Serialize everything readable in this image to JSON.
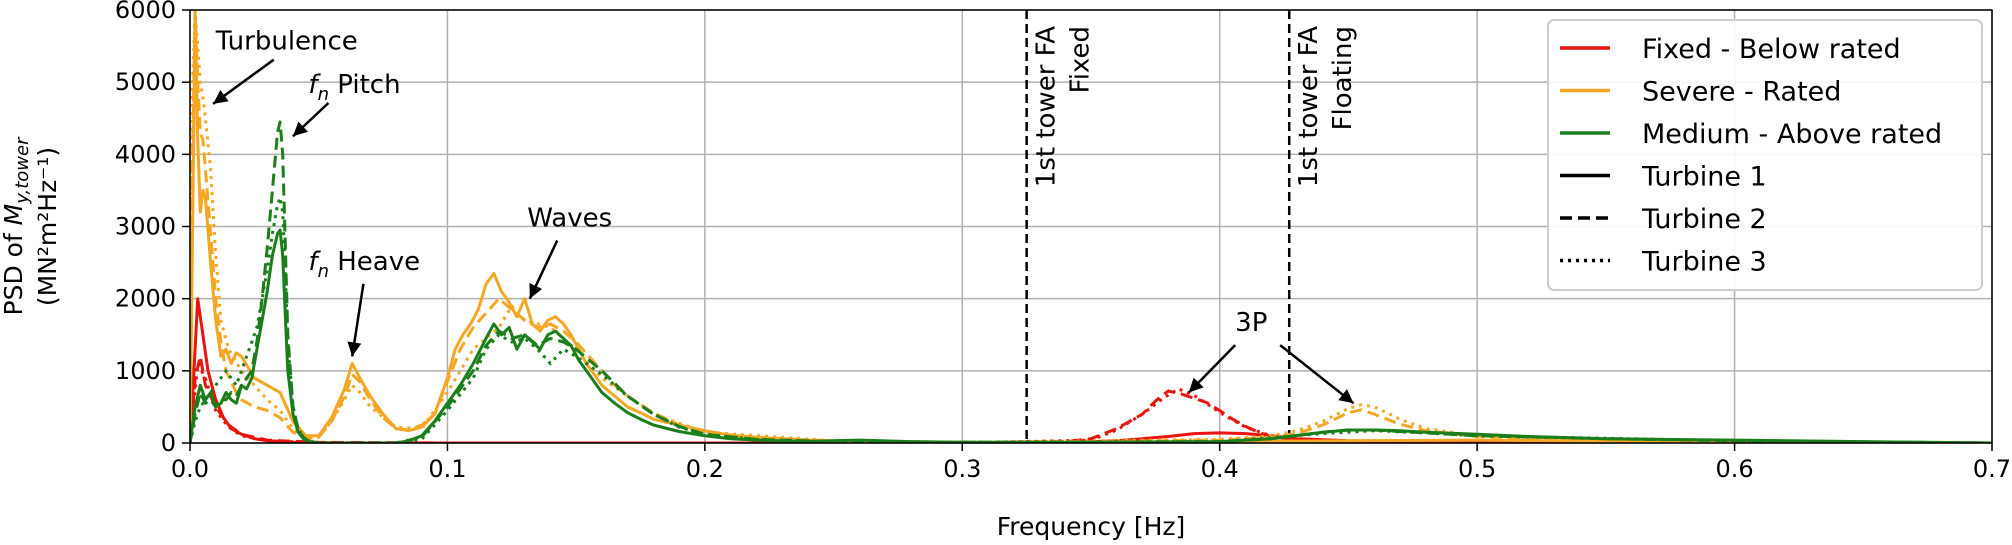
{
  "chart_data": {
    "type": "line",
    "xlabel": "Frequency [Hz]",
    "ylabel_line1": "PSD of M_{y,tower}",
    "ylabel_line2": "(MN²m²Hz⁻¹)",
    "xlim": [
      0.0,
      0.7
    ],
    "ylim": [
      0,
      6000
    ],
    "xticks": [
      0.0,
      0.1,
      0.2,
      0.3,
      0.4,
      0.5,
      0.6,
      0.7
    ],
    "xtick_labels": [
      "0.0",
      "0.1",
      "0.2",
      "0.3",
      "0.4",
      "0.5",
      "0.6",
      "0.7"
    ],
    "yticks": [
      0,
      1000,
      2000,
      3000,
      4000,
      5000,
      6000
    ],
    "ytick_labels": [
      "0",
      "1000",
      "2000",
      "3000",
      "4000",
      "5000",
      "6000"
    ],
    "grid": true,
    "legend_position": "top-right",
    "colors": {
      "red": "#e8140f",
      "orange": "#f5a623",
      "green": "#1a7f1a"
    },
    "legend": [
      {
        "label": "Fixed - Below rated",
        "color": "#e8140f",
        "dash": "solid"
      },
      {
        "label": "Severe - Rated",
        "color": "#f5a623",
        "dash": "solid"
      },
      {
        "label": "Medium - Above rated",
        "color": "#1a7f1a",
        "dash": "solid"
      },
      {
        "label": "Turbine 1",
        "color": "#000000",
        "dash": "solid"
      },
      {
        "label": "Turbine 2",
        "color": "#000000",
        "dash": "dashed"
      },
      {
        "label": "Turbine 3",
        "color": "#000000",
        "dash": "dotted"
      }
    ],
    "vlines": [
      {
        "x": 0.325,
        "label_line1": "1st tower FA",
        "label_line2": "Fixed"
      },
      {
        "x": 0.427,
        "label_line1": "1st tower FA",
        "label_line2": "Floating"
      }
    ],
    "annotations": [
      {
        "text": "Turbulence",
        "tx": 0.01,
        "ty": 5450,
        "ax": 0.009,
        "ay": 4700
      },
      {
        "text": "Pitch",
        "subscript_label": true,
        "tx": 0.046,
        "ty": 4850,
        "ax": 0.04,
        "ay": 4250
      },
      {
        "text": "Heave",
        "subscript_label": true,
        "tx": 0.046,
        "ty": 2400,
        "ax": 0.063,
        "ay": 1200
      },
      {
        "text": "Waves",
        "tx": 0.131,
        "ty": 3000,
        "ax": 0.132,
        "ay": 2000
      },
      {
        "text": "3P",
        "tx": 0.406,
        "ty": 1550,
        "ax": 0.388,
        "ay": 700
      },
      {
        "text": "",
        "tx": 0.406,
        "ty": 1550,
        "ax": 0.452,
        "ay": 550
      }
    ],
    "series": [
      {
        "color": "#e8140f",
        "dash": "solid",
        "x": [
          0.0,
          0.002,
          0.003,
          0.005,
          0.007,
          0.01,
          0.013,
          0.016,
          0.02,
          0.025,
          0.03,
          0.04,
          0.06,
          0.08,
          0.1,
          0.2,
          0.3,
          0.34,
          0.36,
          0.37,
          0.38,
          0.39,
          0.4,
          0.41,
          0.42,
          0.43,
          0.45,
          0.5,
          0.6,
          0.7
        ],
        "y": [
          0,
          1300,
          2000,
          1500,
          1000,
          600,
          350,
          200,
          120,
          60,
          30,
          10,
          0,
          0,
          0,
          0,
          0,
          5,
          30,
          60,
          90,
          130,
          140,
          130,
          100,
          60,
          30,
          10,
          5,
          0
        ]
      },
      {
        "color": "#e8140f",
        "dash": "dashed",
        "x": [
          0.0,
          0.002,
          0.004,
          0.006,
          0.01,
          0.015,
          0.02,
          0.03,
          0.05,
          0.1,
          0.3,
          0.34,
          0.35,
          0.36,
          0.37,
          0.375,
          0.38,
          0.385,
          0.39,
          0.395,
          0.4,
          0.405,
          0.41,
          0.415,
          0.42,
          0.43,
          0.44,
          0.46,
          0.5,
          0.7
        ],
        "y": [
          0,
          900,
          1200,
          800,
          500,
          250,
          120,
          40,
          10,
          0,
          0,
          20,
          60,
          200,
          400,
          580,
          720,
          680,
          620,
          560,
          450,
          330,
          230,
          150,
          90,
          40,
          20,
          10,
          5,
          0
        ]
      },
      {
        "color": "#e8140f",
        "dash": "dotted",
        "x": [
          0.0,
          0.003,
          0.006,
          0.01,
          0.015,
          0.02,
          0.03,
          0.05,
          0.1,
          0.3,
          0.35,
          0.36,
          0.37,
          0.378,
          0.384,
          0.39,
          0.396,
          0.402,
          0.41,
          0.42,
          0.43,
          0.45,
          0.5,
          0.7
        ],
        "y": [
          0,
          1100,
          900,
          450,
          220,
          100,
          30,
          5,
          0,
          0,
          40,
          180,
          400,
          620,
          750,
          660,
          520,
          380,
          220,
          100,
          40,
          10,
          5,
          0
        ]
      },
      {
        "color": "#f5a623",
        "dash": "solid",
        "x": [
          0.0,
          0.001,
          0.002,
          0.003,
          0.004,
          0.005,
          0.006,
          0.008,
          0.01,
          0.012,
          0.014,
          0.016,
          0.018,
          0.02,
          0.025,
          0.03,
          0.035,
          0.04,
          0.045,
          0.05,
          0.055,
          0.06,
          0.063,
          0.066,
          0.07,
          0.075,
          0.08,
          0.085,
          0.09,
          0.095,
          0.1,
          0.103,
          0.106,
          0.109,
          0.112,
          0.115,
          0.118,
          0.121,
          0.124,
          0.127,
          0.13,
          0.133,
          0.136,
          0.139,
          0.142,
          0.145,
          0.148,
          0.151,
          0.154,
          0.157,
          0.16,
          0.165,
          0.17,
          0.175,
          0.18,
          0.19,
          0.2,
          0.21,
          0.22,
          0.24,
          0.26,
          0.28,
          0.3,
          0.35,
          0.4,
          0.45,
          0.5,
          0.6,
          0.7
        ],
        "y": [
          0,
          3000,
          6000,
          4200,
          3200,
          3500,
          3400,
          2500,
          1700,
          1200,
          1300,
          1100,
          1250,
          1200,
          900,
          800,
          700,
          300,
          100,
          100,
          350,
          750,
          1100,
          900,
          650,
          400,
          200,
          170,
          220,
          400,
          900,
          1300,
          1500,
          1650,
          1850,
          2200,
          2350,
          2100,
          1950,
          1750,
          2000,
          1650,
          1550,
          1700,
          1750,
          1650,
          1500,
          1300,
          1100,
          950,
          800,
          650,
          500,
          420,
          330,
          250,
          170,
          110,
          80,
          40,
          20,
          10,
          0,
          10,
          20,
          30,
          40,
          10,
          0
        ]
      },
      {
        "color": "#f5a623",
        "dash": "dashed",
        "x": [
          0.0,
          0.001,
          0.002,
          0.003,
          0.004,
          0.005,
          0.006,
          0.008,
          0.01,
          0.012,
          0.014,
          0.016,
          0.018,
          0.02,
          0.025,
          0.03,
          0.035,
          0.04,
          0.045,
          0.05,
          0.055,
          0.06,
          0.063,
          0.066,
          0.07,
          0.075,
          0.08,
          0.085,
          0.09,
          0.095,
          0.1,
          0.105,
          0.11,
          0.115,
          0.12,
          0.125,
          0.13,
          0.135,
          0.14,
          0.145,
          0.15,
          0.155,
          0.16,
          0.165,
          0.17,
          0.18,
          0.19,
          0.2,
          0.22,
          0.25,
          0.3,
          0.35,
          0.4,
          0.42,
          0.43,
          0.44,
          0.45,
          0.455,
          0.46,
          0.465,
          0.47,
          0.48,
          0.5,
          0.55,
          0.6,
          0.7
        ],
        "y": [
          0,
          4000,
          6000,
          5000,
          4300,
          4200,
          3800,
          2900,
          2000,
          1400,
          1000,
          850,
          700,
          600,
          500,
          450,
          350,
          150,
          60,
          80,
          300,
          650,
          950,
          850,
          600,
          350,
          200,
          180,
          250,
          400,
          850,
          1300,
          1600,
          1800,
          2000,
          1850,
          1700,
          1600,
          1650,
          1550,
          1400,
          1200,
          1000,
          800,
          650,
          420,
          250,
          150,
          70,
          30,
          10,
          20,
          40,
          80,
          130,
          250,
          420,
          460,
          400,
          330,
          260,
          170,
          90,
          40,
          20,
          0
        ]
      },
      {
        "color": "#f5a623",
        "dash": "dotted",
        "x": [
          0.0,
          0.001,
          0.002,
          0.003,
          0.004,
          0.005,
          0.006,
          0.008,
          0.01,
          0.012,
          0.015,
          0.02,
          0.025,
          0.03,
          0.035,
          0.04,
          0.045,
          0.05,
          0.055,
          0.06,
          0.063,
          0.066,
          0.07,
          0.08,
          0.09,
          0.1,
          0.11,
          0.12,
          0.125,
          0.13,
          0.14,
          0.15,
          0.16,
          0.17,
          0.18,
          0.2,
          0.25,
          0.3,
          0.4,
          0.42,
          0.43,
          0.44,
          0.45,
          0.455,
          0.46,
          0.465,
          0.47,
          0.48,
          0.5,
          0.55,
          0.6,
          0.7
        ],
        "y": [
          0,
          5000,
          6000,
          5500,
          5000,
          4800,
          4500,
          3800,
          2600,
          1700,
          1300,
          1000,
          800,
          600,
          450,
          200,
          80,
          80,
          300,
          600,
          800,
          700,
          500,
          220,
          200,
          700,
          1300,
          1600,
          1900,
          1700,
          1600,
          1300,
          900,
          650,
          400,
          150,
          30,
          10,
          50,
          100,
          170,
          300,
          480,
          530,
          500,
          420,
          330,
          200,
          100,
          40,
          20,
          0
        ]
      },
      {
        "color": "#1a7f1a",
        "dash": "solid",
        "x": [
          0.0,
          0.002,
          0.004,
          0.006,
          0.008,
          0.01,
          0.012,
          0.014,
          0.016,
          0.018,
          0.02,
          0.022,
          0.024,
          0.026,
          0.028,
          0.03,
          0.032,
          0.034,
          0.035,
          0.036,
          0.037,
          0.038,
          0.04,
          0.042,
          0.044,
          0.046,
          0.05,
          0.06,
          0.07,
          0.08,
          0.085,
          0.09,
          0.095,
          0.1,
          0.105,
          0.11,
          0.115,
          0.118,
          0.121,
          0.124,
          0.127,
          0.13,
          0.133,
          0.136,
          0.139,
          0.142,
          0.145,
          0.148,
          0.151,
          0.154,
          0.157,
          0.16,
          0.165,
          0.17,
          0.175,
          0.18,
          0.19,
          0.2,
          0.21,
          0.22,
          0.24,
          0.25,
          0.26,
          0.28,
          0.3,
          0.35,
          0.4,
          0.42,
          0.44,
          0.45,
          0.46,
          0.47,
          0.48,
          0.5,
          0.52,
          0.55,
          0.6,
          0.65,
          0.7
        ],
        "y": [
          0,
          500,
          800,
          600,
          700,
          500,
          550,
          700,
          600,
          550,
          800,
          750,
          900,
          1300,
          1700,
          2100,
          2600,
          2900,
          2950,
          2600,
          1800,
          1000,
          400,
          150,
          60,
          20,
          0,
          0,
          0,
          0,
          30,
          100,
          300,
          550,
          800,
          1100,
          1450,
          1650,
          1500,
          1600,
          1300,
          1500,
          1400,
          1300,
          1500,
          1550,
          1450,
          1350,
          1150,
          1000,
          850,
          700,
          550,
          420,
          330,
          250,
          160,
          100,
          60,
          40,
          20,
          30,
          40,
          20,
          10,
          10,
          20,
          60,
          150,
          180,
          180,
          170,
          150,
          120,
          90,
          60,
          40,
          20,
          0
        ]
      },
      {
        "color": "#1a7f1a",
        "dash": "dashed",
        "x": [
          0.0,
          0.002,
          0.004,
          0.006,
          0.008,
          0.01,
          0.012,
          0.014,
          0.016,
          0.018,
          0.02,
          0.022,
          0.024,
          0.026,
          0.028,
          0.03,
          0.032,
          0.034,
          0.035,
          0.036,
          0.037,
          0.038,
          0.04,
          0.042,
          0.044,
          0.046,
          0.05,
          0.06,
          0.08,
          0.09,
          0.1,
          0.11,
          0.115,
          0.12,
          0.125,
          0.13,
          0.135,
          0.14,
          0.145,
          0.15,
          0.16,
          0.17,
          0.18,
          0.19,
          0.2,
          0.22,
          0.25,
          0.3,
          0.35,
          0.4,
          0.42,
          0.44,
          0.45,
          0.46,
          0.47,
          0.48,
          0.5,
          0.55,
          0.6,
          0.7
        ],
        "y": [
          0,
          400,
          700,
          550,
          600,
          500,
          600,
          600,
          700,
          650,
          800,
          900,
          1000,
          1400,
          2000,
          2700,
          3500,
          4300,
          4450,
          4000,
          2800,
          1500,
          500,
          200,
          80,
          30,
          0,
          0,
          0,
          80,
          500,
          1000,
          1350,
          1550,
          1450,
          1500,
          1350,
          1450,
          1400,
          1300,
          1000,
          650,
          400,
          230,
          120,
          50,
          20,
          10,
          10,
          20,
          60,
          150,
          180,
          180,
          160,
          140,
          100,
          60,
          30,
          0
        ]
      },
      {
        "color": "#1a7f1a",
        "dash": "dotted",
        "x": [
          0.0,
          0.002,
          0.004,
          0.006,
          0.008,
          0.01,
          0.012,
          0.014,
          0.016,
          0.018,
          0.02,
          0.022,
          0.024,
          0.026,
          0.028,
          0.03,
          0.032,
          0.034,
          0.035,
          0.036,
          0.037,
          0.038,
          0.04,
          0.042,
          0.044,
          0.046,
          0.05,
          0.06,
          0.08,
          0.09,
          0.1,
          0.11,
          0.115,
          0.12,
          0.125,
          0.13,
          0.135,
          0.14,
          0.145,
          0.15,
          0.16,
          0.17,
          0.18,
          0.19,
          0.2,
          0.22,
          0.25,
          0.3,
          0.4,
          0.44,
          0.46,
          0.48,
          0.5,
          0.6,
          0.7
        ],
        "y": [
          0,
          300,
          500,
          600,
          700,
          800,
          900,
          1000,
          900,
          800,
          1000,
          1200,
          1400,
          1600,
          2000,
          2400,
          2900,
          3300,
          3400,
          3200,
          2400,
          1400,
          500,
          200,
          80,
          30,
          0,
          0,
          0,
          50,
          450,
          900,
          1300,
          1500,
          1400,
          1450,
          1300,
          1100,
          1300,
          1200,
          950,
          650,
          400,
          220,
          120,
          50,
          20,
          10,
          20,
          130,
          170,
          140,
          100,
          30,
          0
        ]
      }
    ]
  }
}
